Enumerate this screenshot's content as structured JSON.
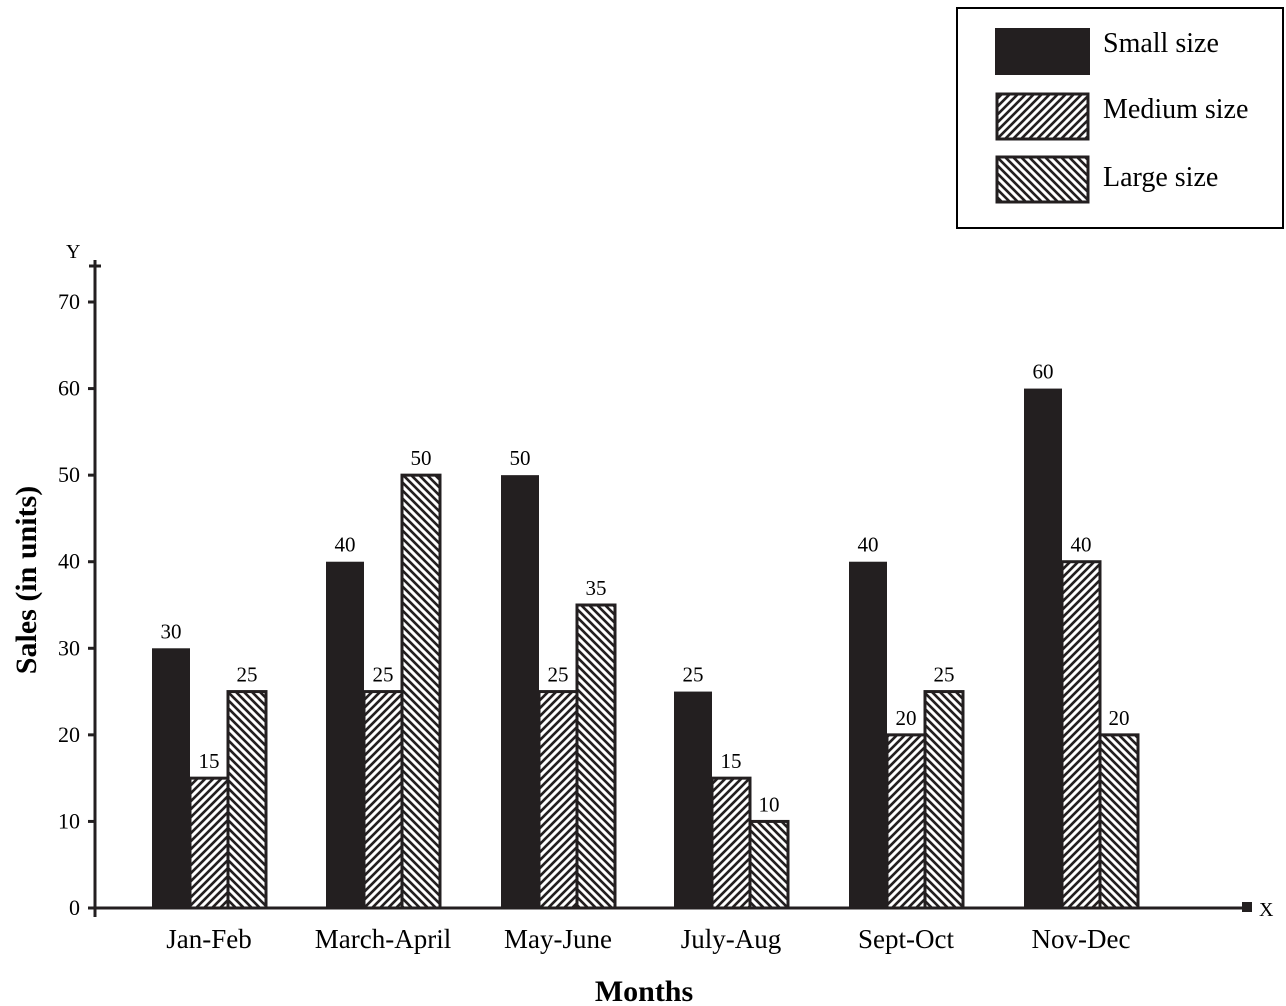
{
  "chart_data": {
    "type": "bar",
    "xlabel": "Months",
    "ylabel": "Sales (in units)",
    "x_axis_marker": "X",
    "y_axis_marker": "Y",
    "categories": [
      "Jan-Feb",
      "March-April",
      "May-June",
      "July-Aug",
      "Sept-Oct",
      "Nov-Dec"
    ],
    "series": [
      {
        "name": "Small size",
        "values": [
          30,
          40,
          50,
          25,
          40,
          60
        ],
        "pattern": "solid",
        "color": "#231f20"
      },
      {
        "name": "Medium size",
        "values": [
          15,
          25,
          25,
          15,
          20,
          40
        ],
        "pattern": "hatch-forward",
        "color": "#231f20"
      },
      {
        "name": "Large size",
        "values": [
          25,
          50,
          35,
          10,
          25,
          20
        ],
        "pattern": "hatch-backward",
        "color": "#231f20"
      }
    ],
    "ylim": [
      0,
      70
    ],
    "yticks": [
      0,
      10,
      20,
      30,
      40,
      50,
      60,
      70
    ],
    "legend_position": "top-right",
    "grid": false,
    "data_labels": true
  }
}
